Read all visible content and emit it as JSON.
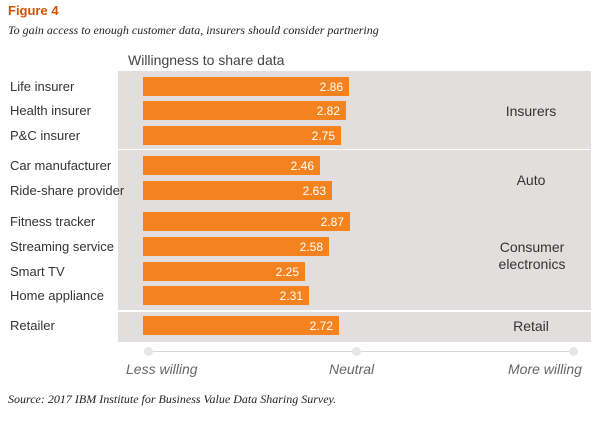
{
  "figure": {
    "label": "Figure 4",
    "subtitle": "To gain access to enough customer data, insurers should consider partnering",
    "source": "Source: 2017 IBM Institute for Business Value Data Sharing Survey."
  },
  "chart_data": {
    "type": "bar",
    "orientation": "horizontal",
    "title": "Willingness to share data",
    "categories": [
      "Life insurer",
      "Health insurer",
      "P&C insurer",
      "Car manufacturer",
      "Ride-share provider",
      "Fitness tracker",
      "Streaming service",
      "Smart TV",
      "Home appliance",
      "Retailer"
    ],
    "values": [
      2.86,
      2.82,
      2.75,
      2.46,
      2.63,
      2.87,
      2.58,
      2.25,
      2.31,
      2.72
    ],
    "value_labels": [
      "2.86",
      "2.82",
      "2.75",
      "2.46",
      "2.63",
      "2.87",
      "2.58",
      "2.25",
      "2.31",
      "2.72"
    ],
    "groups": [
      {
        "label": "Insurers",
        "rows": [
          0,
          1,
          2
        ]
      },
      {
        "label": "Auto",
        "rows": [
          3,
          4
        ]
      },
      {
        "label": "Consumer electronics",
        "rows": [
          5,
          6,
          7,
          8
        ]
      },
      {
        "label": "Retail",
        "rows": [
          9
        ]
      }
    ],
    "scale": {
      "min": 1,
      "mid": 3,
      "max": 5,
      "labels": [
        "Less willing",
        "Neutral",
        "More willing"
      ]
    },
    "bar_color": "#f4831f",
    "panel_color": "#e2dedd"
  }
}
